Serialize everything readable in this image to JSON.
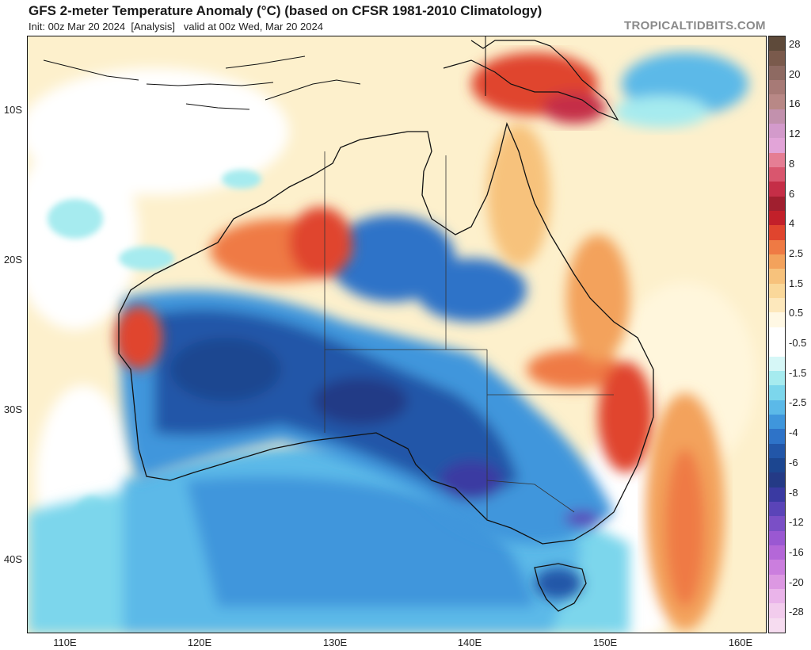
{
  "header": {
    "title": "GFS 2-meter Temperature Anomaly (°C) (based on CFSR 1981-2010 Climatology)",
    "init": "Init: 00z Mar 20 2024",
    "analysis": "[Analysis]",
    "valid": "valid at 00z Wed, Mar 20 2024",
    "brand": "TROPICALTIDBITS.COM"
  },
  "map": {
    "lat_labels": [
      "10S",
      "20S",
      "30S",
      "40S"
    ],
    "lon_labels": [
      "110E",
      "120E",
      "130E",
      "140E",
      "150E",
      "160E"
    ],
    "regions": {
      "ocean_default": "warm-neutral",
      "northern_australia": "warm",
      "central_west_australia": "cold",
      "southern_ocean": "cold",
      "east_coast": "warm",
      "tasman_sea": "warm"
    }
  },
  "colorbar": {
    "labels": [
      "28",
      "20",
      "16",
      "12",
      "8",
      "6",
      "4",
      "2.5",
      "1.5",
      "0.5",
      "-0.5",
      "-1.5",
      "-2.5",
      "-4",
      "-6",
      "-8",
      "-12",
      "-16",
      "-20",
      "-28"
    ],
    "colors": [
      "#5e4a3a",
      "#7a5a4c",
      "#8e6a62",
      "#a77a76",
      "#b88886",
      "#c291ad",
      "#d39acb",
      "#e2a4d8",
      "#e57e94",
      "#d9566e",
      "#c52e47",
      "#a01f2f",
      "#c2202a",
      "#e0452e",
      "#ef7a44",
      "#f3a25c",
      "#f7c27c",
      "#fad89a",
      "#fde8bc",
      "#fff8e4",
      "#ffffff",
      "#ffffff",
      "#d6f7f7",
      "#a6ebef",
      "#7cd6ec",
      "#5bb9e8",
      "#3f96dc",
      "#2e73c8",
      "#2256a8",
      "#1c4690",
      "#243a86",
      "#3a3aa2",
      "#5a44b8",
      "#7a4fc6",
      "#9a58d2",
      "#b467d8",
      "#cb7ede",
      "#dc98e2",
      "#ea b4ea",
      "#f2cced",
      "#f6dcf0"
    ]
  }
}
